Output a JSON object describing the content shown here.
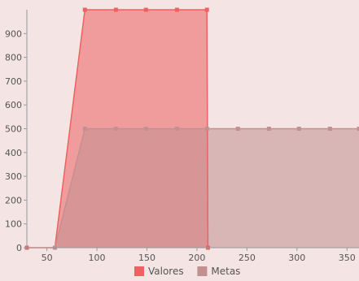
{
  "chart_data": {
    "type": "area",
    "title": "",
    "xlabel": "",
    "ylabel": "",
    "xlim": [
      30,
      362
    ],
    "ylim": [
      0,
      1000
    ],
    "x_ticks": [
      50,
      100,
      150,
      200,
      250,
      300,
      350
    ],
    "y_ticks": [
      0,
      100,
      200,
      300,
      400,
      500,
      600,
      700,
      800,
      900
    ],
    "grid": false,
    "legend_position": "bottom",
    "series": [
      {
        "name": "Valores",
        "color": "#ef6060",
        "points": [
          [
            30,
            0
          ],
          [
            58,
            0
          ],
          [
            88,
            1000
          ],
          [
            119,
            1000
          ],
          [
            149,
            1000
          ],
          [
            180,
            1000
          ],
          [
            210,
            1000
          ],
          [
            211,
            0
          ]
        ]
      },
      {
        "name": "Metas",
        "color": "#c29090",
        "points": [
          [
            58,
            0
          ],
          [
            88,
            500
          ],
          [
            119,
            500
          ],
          [
            149,
            500
          ],
          [
            180,
            500
          ],
          [
            210,
            500
          ],
          [
            241,
            500
          ],
          [
            272,
            500
          ],
          [
            302,
            500
          ],
          [
            333,
            500
          ],
          [
            362,
            500
          ]
        ]
      }
    ]
  }
}
